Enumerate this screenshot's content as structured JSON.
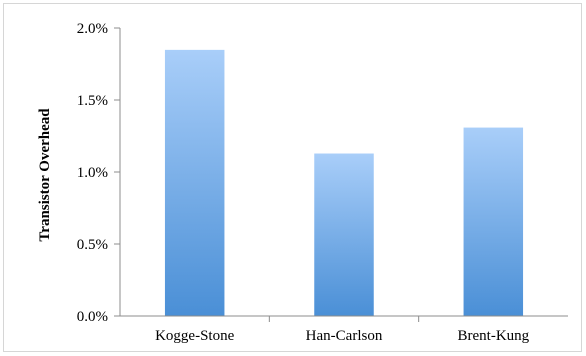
{
  "chart_data": {
    "type": "bar",
    "title": "",
    "xlabel": "",
    "ylabel": "Transistor Overhead",
    "categories": [
      "Kogge-Stone",
      "Han-Carlson",
      "Brent-Kung"
    ],
    "values": [
      1.85,
      1.13,
      1.31
    ],
    "unit": "%",
    "ylim": [
      0,
      2.0
    ],
    "yticks": [
      "0.0%",
      "0.5%",
      "1.0%",
      "1.5%",
      "2.0%"
    ],
    "grid": false,
    "legend": "none",
    "colors": {
      "bar_top": "#A9CEF9",
      "bar_bottom": "#4A8FD6",
      "axis": "#8c8c8c",
      "frame": "#d6d6d6"
    }
  }
}
